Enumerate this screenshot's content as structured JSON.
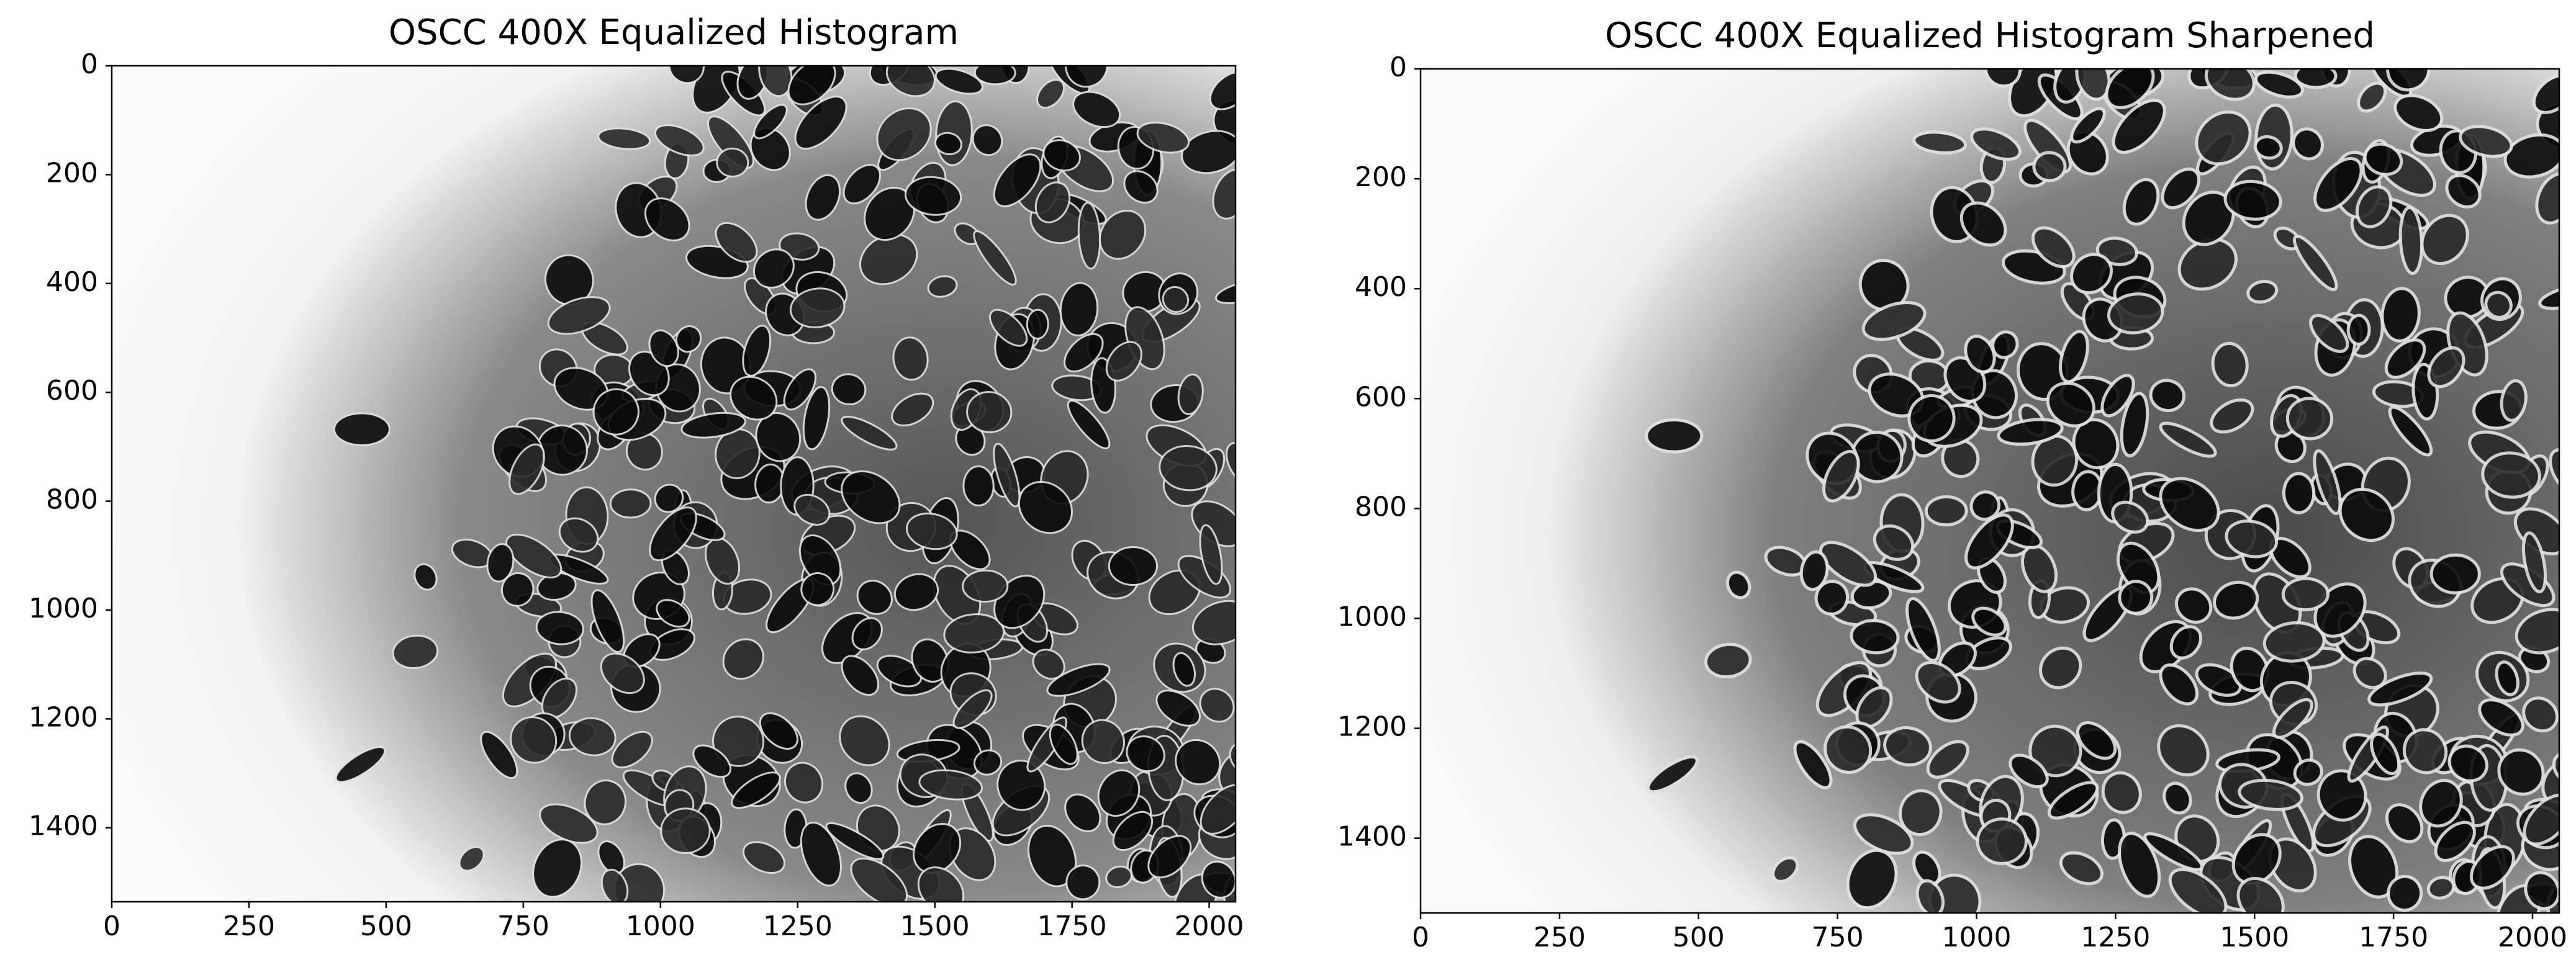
{
  "chart_data": [
    {
      "type": "image",
      "title": "OSCC 400X Equalized Histogram",
      "xlim": [
        0,
        2048
      ],
      "ylim": [
        1536,
        0
      ],
      "y_inverted": true,
      "xticks": [
        0,
        250,
        500,
        750,
        1000,
        1250,
        1500,
        1750,
        2000
      ],
      "yticks": [
        0,
        200,
        400,
        600,
        800,
        1000,
        1200,
        1400
      ]
    },
    {
      "type": "image",
      "title": "OSCC 400X Equalized Histogram Sharpened",
      "xlim": [
        0,
        2048
      ],
      "ylim": [
        1536,
        0
      ],
      "y_inverted": true,
      "xticks": [
        0,
        250,
        500,
        750,
        1000,
        1250,
        1500,
        1750,
        2000
      ],
      "yticks": [
        0,
        200,
        400,
        600,
        800,
        1000,
        1200,
        1400
      ]
    }
  ]
}
